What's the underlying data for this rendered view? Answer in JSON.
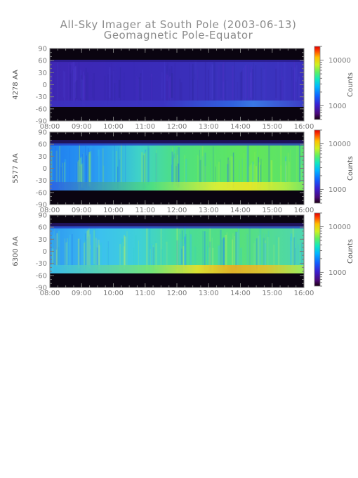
{
  "figure": {
    "title": "All-Sky Imager at South Pole (2003-06-13)",
    "subtitle": "Geomagnetic Pole-Equator"
  },
  "chart_data": [
    {
      "type": "heatmap",
      "ylabel": "4278 AA",
      "xlabel": "",
      "x_ticks": [
        "08:00",
        "09:00",
        "10:00",
        "11:00",
        "12:00",
        "13:00",
        "14:00",
        "15:00",
        "16:00"
      ],
      "xlim": [
        "08:00",
        "16:00"
      ],
      "y_ticks": [
        90,
        60,
        30,
        0,
        -30,
        -60,
        -90
      ],
      "ylim": [
        -90,
        90
      ],
      "data_lat_range": [
        -55,
        62
      ],
      "colorbar": {
        "label": "Counts",
        "ticks": [
          1000,
          10000
        ],
        "scale": "log",
        "range": [
          500,
          20000
        ]
      },
      "typical_level": "low (dark blue/purple) throughout; brighter blue band near -50 after 12:00, peaking around 14:00"
    },
    {
      "type": "heatmap",
      "ylabel": "5577 AA",
      "xlabel": "",
      "x_ticks": [
        "08:00",
        "09:00",
        "10:00",
        "11:00",
        "12:00",
        "13:00",
        "14:00",
        "15:00",
        "16:00"
      ],
      "xlim": [
        "08:00",
        "16:00"
      ],
      "y_ticks": [
        90,
        60,
        30,
        0,
        -30,
        -60,
        -90
      ],
      "ylim": [
        -90,
        90
      ],
      "data_lat_range": [
        -55,
        62
      ],
      "colorbar": {
        "label": "Counts",
        "ticks": [
          1000,
          10000
        ],
        "scale": "log",
        "range": [
          500,
          20000
        ]
      },
      "typical_level": "blue-cyan before 10:30, green to yellow afterwards with strongest emission near -50 around 14:00"
    },
    {
      "type": "heatmap",
      "ylabel": "6300 AA",
      "xlabel": "",
      "x_ticks": [
        "08:00",
        "09:00",
        "10:00",
        "11:00",
        "12:00",
        "13:00",
        "14:00",
        "15:00",
        "16:00"
      ],
      "xlim": [
        "08:00",
        "16:00"
      ],
      "y_ticks": [
        90,
        60,
        30,
        0,
        -30,
        -60,
        -90
      ],
      "ylim": [
        -90,
        90
      ],
      "data_lat_range": [
        -55,
        62
      ],
      "colorbar": {
        "label": "Counts",
        "ticks": [
          1000,
          10000
        ],
        "scale": "log",
        "range": [
          500,
          20000
        ]
      },
      "typical_level": "cyan-blue broadly, green from 11:00, yellow-orange band near -50 between 12:00 and 15:00"
    }
  ]
}
